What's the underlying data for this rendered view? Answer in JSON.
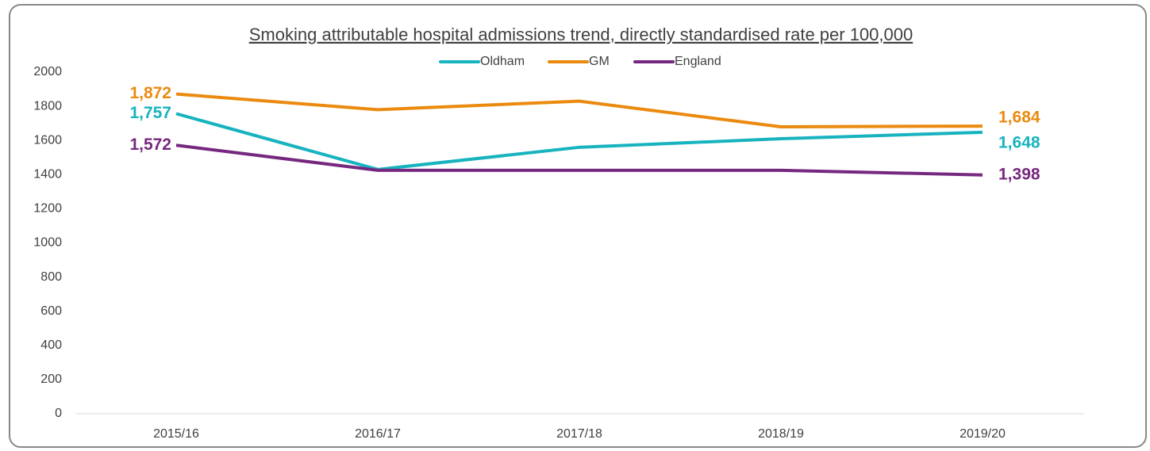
{
  "chart_data": {
    "type": "line",
    "title": "Smoking attributable hospital admissions trend, directly standardised rate per 100,000",
    "categories": [
      "2015/16",
      "2016/17",
      "2017/18",
      "2018/19",
      "2019/20"
    ],
    "series": [
      {
        "name": "Oldham",
        "color": "#17b3bf",
        "values": [
          1757,
          1430,
          1560,
          1610,
          1648
        ],
        "value_labels": [
          "1,757",
          null,
          null,
          null,
          "1,648"
        ]
      },
      {
        "name": "GM",
        "color": "#ea8a0f",
        "values": [
          1872,
          1780,
          1830,
          1680,
          1684
        ],
        "value_labels": [
          "1,872",
          null,
          null,
          null,
          "1,684"
        ]
      },
      {
        "name": "England",
        "color": "#76287f",
        "values": [
          1572,
          1425,
          1425,
          1425,
          1398
        ],
        "value_labels": [
          "1,572",
          null,
          null,
          null,
          "1,398"
        ]
      }
    ],
    "ylim": [
      0,
      2000
    ],
    "yticks": [
      0,
      200,
      400,
      600,
      800,
      1000,
      1200,
      1400,
      1600,
      1800,
      2000
    ],
    "legend": "top"
  }
}
